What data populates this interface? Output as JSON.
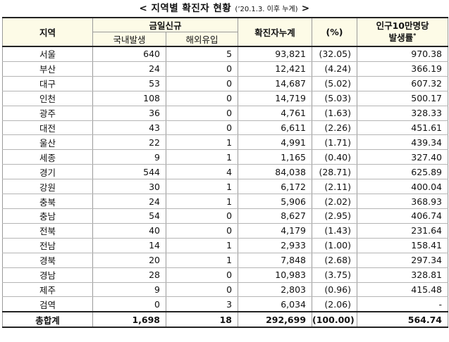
{
  "title": {
    "main": "< 지역별 확진자 현황",
    "sub": "(’20.1.3. 이후 누계)",
    "close": " >"
  },
  "headers": {
    "region": "지역",
    "today_new": "금일신규",
    "domestic": "국내발생",
    "overseas": "해외유입",
    "cumulative": "확진자누계",
    "percent": "(%)",
    "per100k_line1": "인구10만명당",
    "per100k_line2": "발생률",
    "per100k_mark": "*"
  },
  "rows": [
    {
      "region": "서울",
      "domestic": "640",
      "overseas": "5",
      "total": "93,821",
      "pct": "(32.05)",
      "rate": "970.38"
    },
    {
      "region": "부산",
      "domestic": "24",
      "overseas": "0",
      "total": "12,421",
      "pct": "(4.24)",
      "rate": "366.19"
    },
    {
      "region": "대구",
      "domestic": "53",
      "overseas": "0",
      "total": "14,687",
      "pct": "(5.02)",
      "rate": "607.32"
    },
    {
      "region": "인천",
      "domestic": "108",
      "overseas": "0",
      "total": "14,719",
      "pct": "(5.03)",
      "rate": "500.17"
    },
    {
      "region": "광주",
      "domestic": "36",
      "overseas": "0",
      "total": "4,761",
      "pct": "(1.63)",
      "rate": "328.33"
    },
    {
      "region": "대전",
      "domestic": "43",
      "overseas": "0",
      "total": "6,611",
      "pct": "(2.26)",
      "rate": "451.61"
    },
    {
      "region": "울산",
      "domestic": "22",
      "overseas": "1",
      "total": "4,991",
      "pct": "(1.71)",
      "rate": "439.34"
    },
    {
      "region": "세종",
      "domestic": "9",
      "overseas": "1",
      "total": "1,165",
      "pct": "(0.40)",
      "rate": "327.40"
    },
    {
      "region": "경기",
      "domestic": "544",
      "overseas": "4",
      "total": "84,038",
      "pct": "(28.71)",
      "rate": "625.89"
    },
    {
      "region": "강원",
      "domestic": "30",
      "overseas": "1",
      "total": "6,172",
      "pct": "(2.11)",
      "rate": "400.04"
    },
    {
      "region": "충북",
      "domestic": "24",
      "overseas": "1",
      "total": "5,906",
      "pct": "(2.02)",
      "rate": "368.93"
    },
    {
      "region": "충남",
      "domestic": "54",
      "overseas": "0",
      "total": "8,627",
      "pct": "(2.95)",
      "rate": "406.74"
    },
    {
      "region": "전북",
      "domestic": "40",
      "overseas": "0",
      "total": "4,179",
      "pct": "(1.43)",
      "rate": "231.64"
    },
    {
      "region": "전남",
      "domestic": "14",
      "overseas": "1",
      "total": "2,933",
      "pct": "(1.00)",
      "rate": "158.41"
    },
    {
      "region": "경북",
      "domestic": "20",
      "overseas": "1",
      "total": "7,848",
      "pct": "(2.68)",
      "rate": "297.34"
    },
    {
      "region": "경남",
      "domestic": "28",
      "overseas": "0",
      "total": "10,983",
      "pct": "(3.75)",
      "rate": "328.81"
    },
    {
      "region": "제주",
      "domestic": "9",
      "overseas": "0",
      "total": "2,803",
      "pct": "(0.96)",
      "rate": "415.48"
    },
    {
      "region": "검역",
      "domestic": "0",
      "overseas": "3",
      "total": "6,034",
      "pct": "(2.06)",
      "rate": "-"
    }
  ],
  "total": {
    "region": "총합계",
    "domestic": "1,698",
    "overseas": "18",
    "total": "292,699",
    "pct": "(100.00)",
    "rate": "564.74"
  },
  "colors": {
    "header_bg": "#fdfbe7",
    "border": "#9a9a9a"
  }
}
